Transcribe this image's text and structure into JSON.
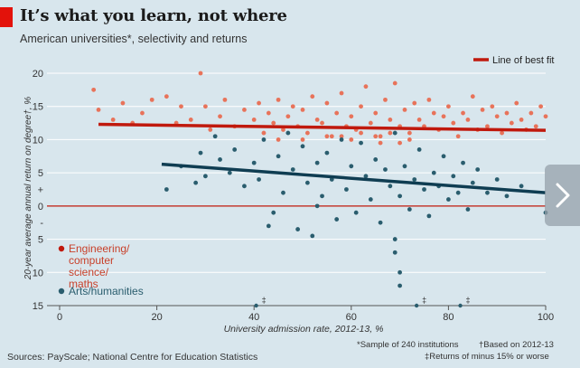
{
  "title": "It’s what you learn, not where",
  "subtitle": "American universities*, selectivity and returns",
  "source": "Sources: PayScale; National Centre for Education Statistics",
  "footnotes": [
    "*Sample of 240 institutions",
    "†Based on 2012-13",
    "‡Returns of minus 15% or worse"
  ],
  "nav": {
    "icon": "chevron-right-icon"
  },
  "colors": {
    "background": "#d8e6ed",
    "engineering": "#e8735a",
    "arts": "#2a5d6e",
    "line_eng": "#c0190d",
    "line_arts": "#0f3d52",
    "zero_line": "#c0190d",
    "tag": "#e3120b"
  },
  "chart_data": {
    "type": "scatter",
    "xlabel": "University admission rate, 2012-13, %",
    "ylabel": "20-year average annual return on degree†, %",
    "xlim": [
      0,
      100
    ],
    "ylim": [
      -15,
      20
    ],
    "x_ticks": [
      "0",
      "20",
      "40",
      "60",
      "80",
      "100"
    ],
    "y_ticks": [
      "20",
      "15",
      "10",
      "5",
      "+",
      "0",
      "-",
      "5",
      "10",
      "15"
    ],
    "grid": true,
    "legend_placement": "top-right",
    "best_fit_label": "Line of best fit",
    "best_fit": [
      {
        "series": "Engineering/ computer science/ maths",
        "x": [
          8,
          100
        ],
        "y": [
          12.3,
          11.4
        ]
      },
      {
        "series": "Arts/humanities",
        "x": [
          21,
          100
        ],
        "y": [
          6.3,
          2.0
        ]
      }
    ],
    "off_scale_markers": [
      {
        "x": 41,
        "label": "‡"
      },
      {
        "x": 74,
        "label": "‡"
      },
      {
        "x": 83,
        "label": "‡"
      }
    ],
    "series": [
      {
        "name": "Engineering/ computer science/ maths",
        "x": [
          7,
          8,
          11,
          13,
          15,
          17,
          19,
          22,
          24,
          25,
          27,
          29,
          30,
          31,
          33,
          34,
          36,
          38,
          40,
          41,
          42,
          43,
          44,
          45,
          46,
          47,
          48,
          49,
          50,
          51,
          52,
          53,
          54,
          55,
          56,
          57,
          58,
          59,
          60,
          61,
          62,
          63,
          64,
          65,
          66,
          67,
          68,
          69,
          70,
          71,
          72,
          73,
          74,
          75,
          76,
          77,
          78,
          79,
          80,
          81,
          82,
          83,
          84,
          85,
          86,
          87,
          88,
          89,
          90,
          91,
          92,
          93,
          94,
          95,
          96,
          97,
          98,
          99,
          100,
          50,
          55,
          60,
          65,
          70,
          45,
          62,
          58,
          66,
          72,
          68
        ],
        "y": [
          17.5,
          14.5,
          13.0,
          15.5,
          12.5,
          14.0,
          16.0,
          16.5,
          12.5,
          15.0,
          13.0,
          20.0,
          15.0,
          11.5,
          13.5,
          16.0,
          12.0,
          14.5,
          13.0,
          15.5,
          11.0,
          14.0,
          12.5,
          16.0,
          11.5,
          13.5,
          15.0,
          12.0,
          14.5,
          11.0,
          16.5,
          13.0,
          12.5,
          15.5,
          10.5,
          14.0,
          17.0,
          12.0,
          13.5,
          11.5,
          15.0,
          18.0,
          12.5,
          14.0,
          10.5,
          16.0,
          13.0,
          18.5,
          12.0,
          14.5,
          11.0,
          15.5,
          13.0,
          12.0,
          16.0,
          14.0,
          11.5,
          13.5,
          15.0,
          12.5,
          10.5,
          14.0,
          13.0,
          16.5,
          11.5,
          14.5,
          12.0,
          15.0,
          13.5,
          11.0,
          14.0,
          12.5,
          15.5,
          13.0,
          11.5,
          14.0,
          12.0,
          15.0,
          13.5,
          10.0,
          10.5,
          10.0,
          10.5,
          9.5,
          10.0,
          11.0,
          10.5,
          9.5,
          10.0,
          11.0
        ]
      },
      {
        "name": "Arts/humanities",
        "x": [
          22,
          25,
          28,
          29,
          30,
          32,
          33,
          35,
          36,
          38,
          40,
          41,
          42,
          44,
          45,
          46,
          47,
          48,
          49,
          50,
          51,
          52,
          53,
          54,
          55,
          56,
          57,
          58,
          59,
          60,
          61,
          62,
          63,
          64,
          65,
          66,
          67,
          68,
          69,
          70,
          71,
          72,
          73,
          74,
          75,
          76,
          77,
          78,
          79,
          80,
          81,
          82,
          83,
          84,
          85,
          86,
          88,
          90,
          92,
          95,
          100,
          43,
          53,
          69,
          69,
          70,
          70
        ],
        "y": [
          2.5,
          6.0,
          3.5,
          8.0,
          4.5,
          10.5,
          7.0,
          5.0,
          8.5,
          3.0,
          6.5,
          4.0,
          10.0,
          -1.0,
          7.5,
          2.0,
          11.0,
          5.5,
          -3.5,
          9.0,
          3.5,
          -4.5,
          6.5,
          1.5,
          8.0,
          4.0,
          -2.0,
          10.0,
          2.5,
          6.0,
          -1.0,
          9.5,
          4.5,
          1.0,
          7.0,
          -2.5,
          5.5,
          3.0,
          11.0,
          1.5,
          6.0,
          -0.5,
          4.0,
          8.5,
          2.5,
          -1.5,
          5.0,
          3.0,
          7.5,
          1.0,
          4.5,
          2.0,
          6.5,
          -0.5,
          3.5,
          5.5,
          2.0,
          4.0,
          1.5,
          3.0,
          -1.0,
          -3.0,
          0.0,
          -5.0,
          -7.0,
          -10.0,
          -12.0
        ]
      }
    ],
    "legend": [
      "Engineering/ computer science/ maths",
      "Arts/humanities"
    ]
  }
}
